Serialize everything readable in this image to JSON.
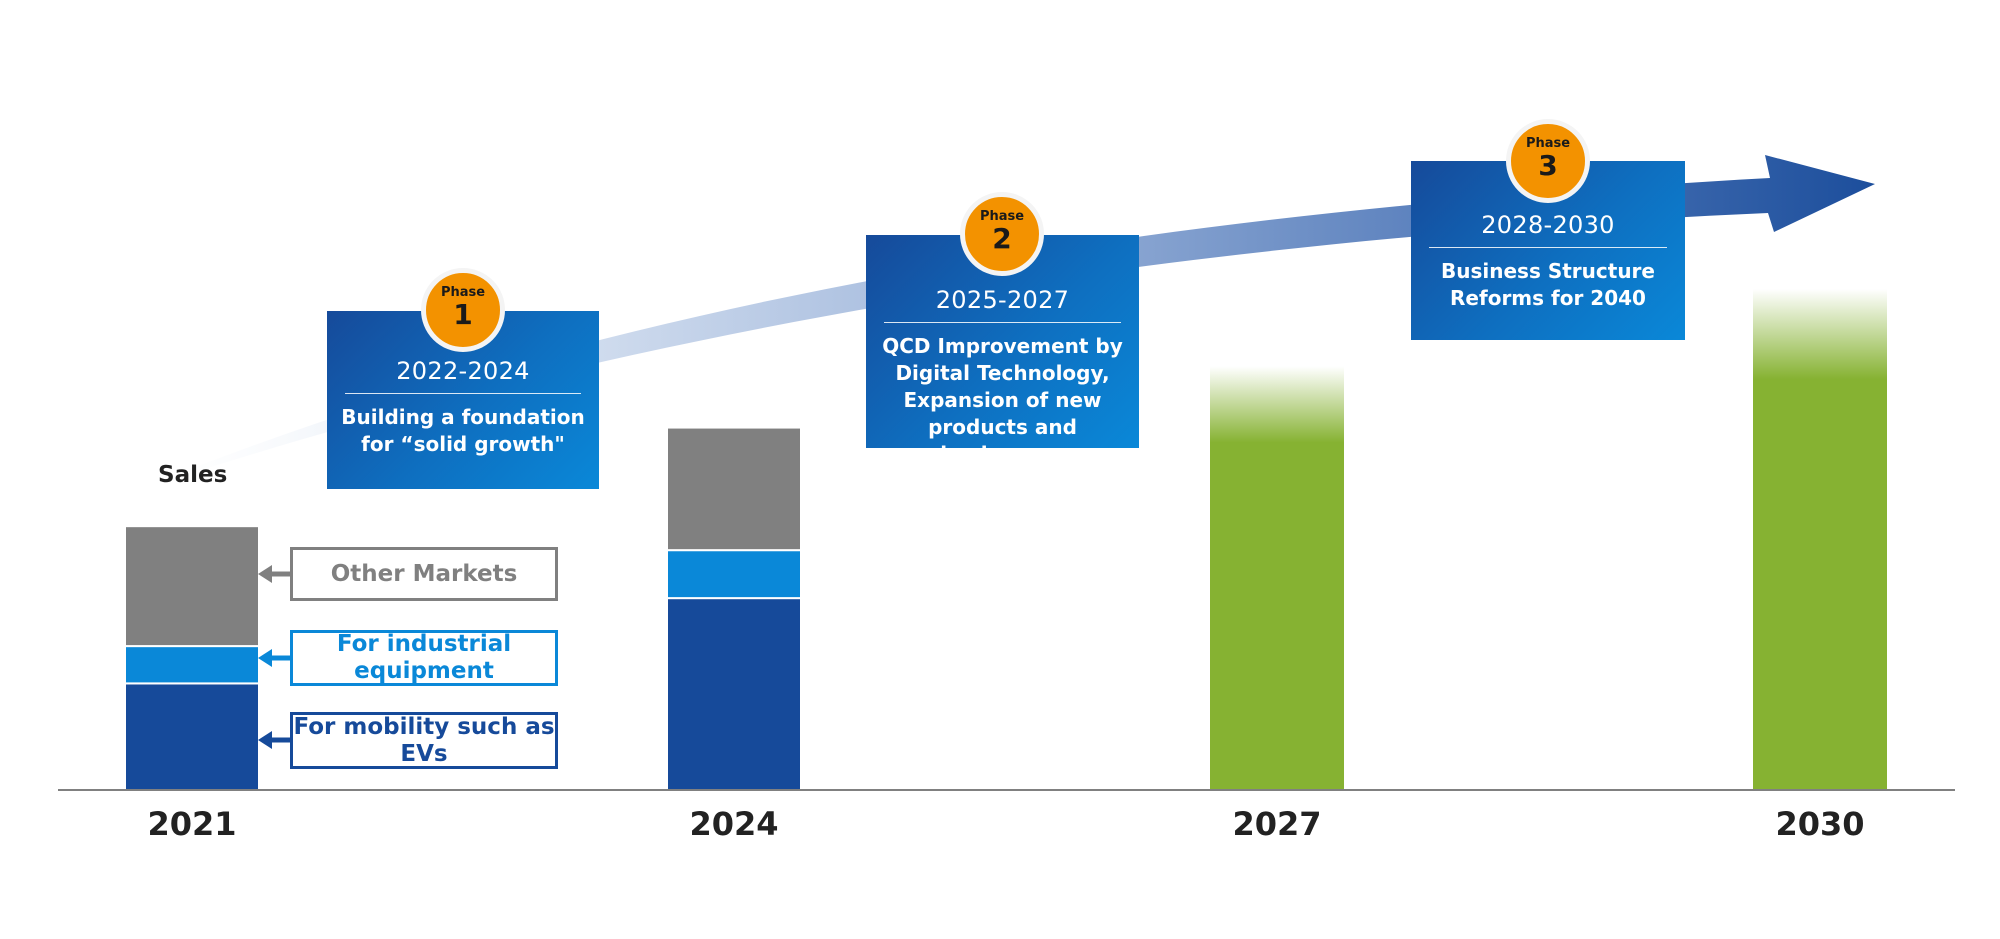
{
  "chart_data": {
    "type": "bar",
    "stacked": true,
    "categories": [
      "2021",
      "2024",
      "2027",
      "2030"
    ],
    "ylabel": "Sales",
    "series": [
      {
        "name": "For mobility such as EVs",
        "color": "#164a9a",
        "values": [
          40,
          72,
          null,
          null
        ]
      },
      {
        "name": "For industrial equipment",
        "color": "#0a88d8",
        "values": [
          14,
          18,
          null,
          null
        ]
      },
      {
        "name": "Other Markets",
        "color": "#808080",
        "values": [
          45,
          46,
          null,
          null
        ]
      }
    ],
    "projection": {
      "color": "#86b232",
      "values": [
        null,
        null,
        159,
        188
      ]
    },
    "ylim": [
      0,
      200
    ]
  },
  "phases": [
    {
      "label": "Phase",
      "number": "1",
      "years": "2022-2024",
      "description": "Building a foundation for “solid growth\""
    },
    {
      "label": "Phase",
      "number": "2",
      "years": "2025-2027",
      "description": "QCD Improvement by Digital Technology, Expansion of new products and businesses"
    },
    {
      "label": "Phase",
      "number": "3",
      "years": "2028-2030",
      "description": "Business Structure Reforms for 2040"
    }
  ],
  "colors": {
    "mobility": "#164a9a",
    "industrial": "#0a88d8",
    "other": "#808080",
    "projection": "#86b232",
    "badge": "#f39200",
    "arrow": "#1c4e9c"
  }
}
